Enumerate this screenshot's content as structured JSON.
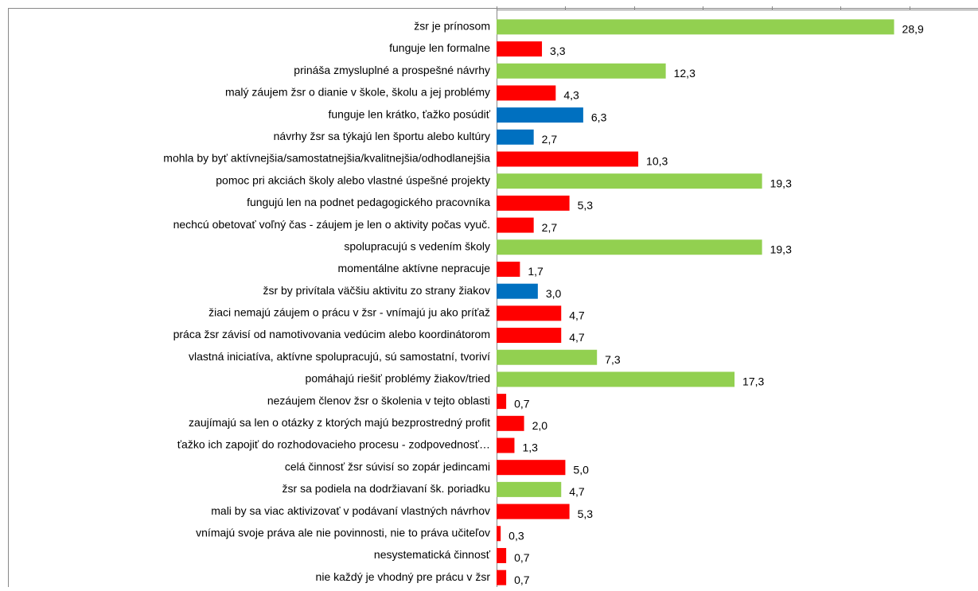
{
  "chart_data": {
    "type": "hbar",
    "categories": [
      "žsr je prínosom",
      "funguje len formalne",
      "prináša zmysluplné a prospešné návrhy",
      "malý záujem žsr o dianie v škole, školu a jej problémy",
      "funguje len krátko, ťažko posúdiť",
      "návrhy žsr sa týkajú len športu alebo kultúry",
      "mohla by byť aktívnejšia/samostatnejšia/kvalitnejšia/odhodlanejšia",
      "pomoc pri akciách školy alebo vlastné úspešné projekty",
      "fungujú len na podnet pedagogického pracovníka",
      "nechcú obetovať voľný čas - záujem je len o aktivity počas vyuč.",
      "spolupracujú s vedením školy",
      "momentálne aktívne nepracuje",
      "žsr by privítala väčšiu aktivitu zo strany žiakov",
      "žiaci nemajú záujem o prácu v žsr - vnímajú ju ako príťaž",
      "práca žsr závisí od namotivovania vedúcim alebo koordinátorom",
      "vlastná iniciatíva, aktívne spolupracujú, sú samostatní, tvoriví",
      "pomáhajú riešiť problémy žiakov/tried",
      "nezáujem členov žsr o školenia v tejto oblasti",
      "zaujímajú sa len o otázky z ktorých majú bezprostredný profit",
      "ťažko ich zapojiť do rozhodovacieho procesu - zodpovednosť…",
      "celá činnosť žsr súvisí so zopár jedincami",
      "žsr sa podiela na dodržiavaní šk. poriadku",
      "mali by sa viac aktivizovať v podávaní vlastných návrhov",
      "vnímajú svoje práva ale nie povinnosti, nie to práva učiteľov",
      "nesystematická činnosť",
      "nie každý je vhodný pre prácu v žsr"
    ],
    "values": [
      28.9,
      3.3,
      12.3,
      4.3,
      6.3,
      2.7,
      10.3,
      19.3,
      5.3,
      2.7,
      19.3,
      1.7,
      3.0,
      4.7,
      4.7,
      7.3,
      17.3,
      0.7,
      2.0,
      1.3,
      5.0,
      4.7,
      5.3,
      0.3,
      0.7,
      0.7
    ],
    "value_labels": [
      "28,9",
      "3,3",
      "12,3",
      "4,3",
      "6,3",
      "2,7",
      "10,3",
      "19,3",
      "5,3",
      "2,7",
      "19,3",
      "1,7",
      "3,0",
      "4,7",
      "4,7",
      "7,3",
      "17,3",
      "0,7",
      "2,0",
      "1,3",
      "5,0",
      "4,7",
      "5,3",
      "0,3",
      "0,7",
      "0,7"
    ],
    "colors": [
      "#92d050",
      "#ff0000",
      "#92d050",
      "#ff0000",
      "#0070c0",
      "#0070c0",
      "#ff0000",
      "#92d050",
      "#ff0000",
      "#ff0000",
      "#92d050",
      "#ff0000",
      "#0070c0",
      "#ff0000",
      "#ff0000",
      "#92d050",
      "#92d050",
      "#ff0000",
      "#ff0000",
      "#ff0000",
      "#ff0000",
      "#92d050",
      "#ff0000",
      "#ff0000",
      "#ff0000",
      "#ff0000"
    ],
    "xlim": [
      0,
      35
    ],
    "xticks": [
      0,
      5,
      10,
      15,
      20,
      25,
      30
    ]
  }
}
